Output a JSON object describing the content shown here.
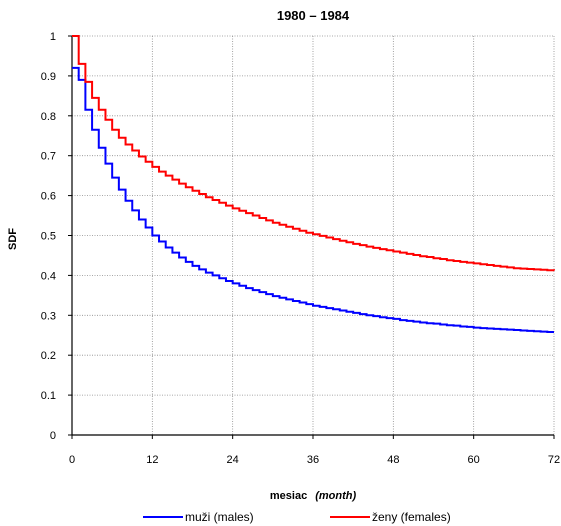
{
  "chart_data": {
    "type": "line",
    "title": "1980 – 1984",
    "xlabel": {
      "main": "mesiac",
      "sub": "(month)"
    },
    "ylabel": "SDF",
    "xlim": [
      0,
      72
    ],
    "ylim": [
      0,
      1
    ],
    "x_ticks": [
      "0",
      "12",
      "24",
      "36",
      "48",
      "60",
      "72"
    ],
    "y_ticks": [
      "0",
      "0.1",
      "0.2",
      "0.3",
      "0.4",
      "0.5",
      "0.6",
      "0.7",
      "0.8",
      "0.9",
      "1"
    ],
    "grid": true,
    "legend_position": "bottom",
    "step": true,
    "series": [
      {
        "name": "muži (males)",
        "color": "#0000ff",
        "x": [
          0,
          1,
          2,
          3,
          4,
          5,
          6,
          7,
          8,
          9,
          10,
          11,
          12,
          13,
          14,
          15,
          16,
          17,
          18,
          19,
          20,
          21,
          22,
          23,
          24,
          25,
          26,
          27,
          28,
          29,
          30,
          31,
          32,
          33,
          34,
          35,
          36,
          37,
          38,
          39,
          40,
          41,
          42,
          43,
          44,
          45,
          46,
          47,
          48,
          49,
          50,
          51,
          52,
          53,
          54,
          55,
          56,
          57,
          58,
          59,
          60,
          61,
          62,
          63,
          64,
          65,
          66,
          67,
          68,
          69,
          70,
          71,
          72
        ],
        "y": [
          0.92,
          0.89,
          0.815,
          0.765,
          0.72,
          0.68,
          0.645,
          0.615,
          0.587,
          0.563,
          0.54,
          0.52,
          0.5,
          0.485,
          0.47,
          0.457,
          0.445,
          0.434,
          0.424,
          0.415,
          0.407,
          0.4,
          0.393,
          0.386,
          0.38,
          0.374,
          0.368,
          0.363,
          0.358,
          0.353,
          0.348,
          0.344,
          0.34,
          0.336,
          0.332,
          0.328,
          0.324,
          0.321,
          0.318,
          0.315,
          0.312,
          0.309,
          0.306,
          0.303,
          0.3,
          0.298,
          0.295,
          0.293,
          0.291,
          0.288,
          0.286,
          0.284,
          0.282,
          0.28,
          0.279,
          0.277,
          0.275,
          0.274,
          0.272,
          0.271,
          0.269,
          0.268,
          0.267,
          0.266,
          0.265,
          0.264,
          0.263,
          0.262,
          0.261,
          0.26,
          0.259,
          0.258,
          0.258
        ]
      },
      {
        "name": "ženy (females)",
        "color": "#ff0000",
        "x": [
          0,
          1,
          2,
          3,
          4,
          5,
          6,
          7,
          8,
          9,
          10,
          11,
          12,
          13,
          14,
          15,
          16,
          17,
          18,
          19,
          20,
          21,
          22,
          23,
          24,
          25,
          26,
          27,
          28,
          29,
          30,
          31,
          32,
          33,
          34,
          35,
          36,
          37,
          38,
          39,
          40,
          41,
          42,
          43,
          44,
          45,
          46,
          47,
          48,
          49,
          50,
          51,
          52,
          53,
          54,
          55,
          56,
          57,
          58,
          59,
          60,
          61,
          62,
          63,
          64,
          65,
          66,
          67,
          68,
          69,
          70,
          71,
          72
        ],
        "y": [
          1.0,
          0.93,
          0.885,
          0.845,
          0.815,
          0.79,
          0.765,
          0.745,
          0.728,
          0.713,
          0.698,
          0.685,
          0.672,
          0.66,
          0.65,
          0.64,
          0.63,
          0.621,
          0.612,
          0.604,
          0.596,
          0.589,
          0.582,
          0.575,
          0.568,
          0.562,
          0.556,
          0.55,
          0.544,
          0.538,
          0.532,
          0.527,
          0.522,
          0.517,
          0.512,
          0.507,
          0.503,
          0.499,
          0.495,
          0.491,
          0.487,
          0.483,
          0.479,
          0.476,
          0.472,
          0.469,
          0.466,
          0.463,
          0.46,
          0.457,
          0.454,
          0.451,
          0.448,
          0.446,
          0.443,
          0.441,
          0.438,
          0.436,
          0.434,
          0.432,
          0.43,
          0.428,
          0.426,
          0.424,
          0.422,
          0.42,
          0.418,
          0.417,
          0.416,
          0.415,
          0.414,
          0.413,
          0.412
        ]
      }
    ]
  }
}
